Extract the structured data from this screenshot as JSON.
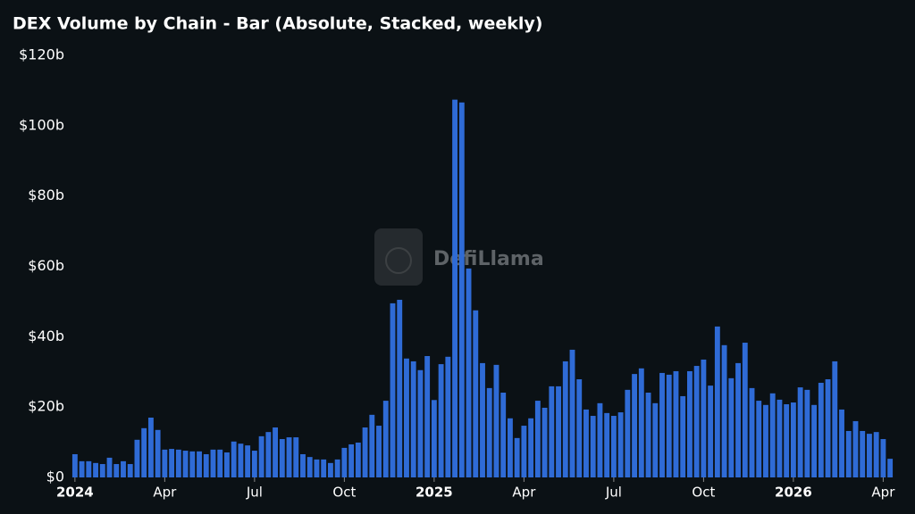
{
  "chart_data": {
    "type": "bar",
    "title": "DEX Volume by Chain - Bar (Absolute, Stacked, weekly)",
    "watermark": "DefiLlama",
    "categories": [
      "2024",
      null,
      null,
      null,
      null,
      null,
      null,
      null,
      null,
      null,
      null,
      null,
      null,
      "Apr",
      null,
      null,
      null,
      null,
      null,
      null,
      null,
      null,
      null,
      null,
      null,
      null,
      "Jul",
      null,
      null,
      null,
      null,
      null,
      null,
      null,
      null,
      null,
      null,
      null,
      null,
      "Oct",
      null,
      null,
      null,
      null,
      null,
      null,
      null,
      null,
      null,
      null,
      null,
      null,
      "2025",
      null,
      null,
      null,
      null,
      null,
      null,
      null,
      null,
      null,
      null,
      null,
      null,
      "Apr",
      null,
      null,
      null,
      null,
      null,
      null,
      null,
      null,
      null,
      null,
      null,
      null,
      "Jul",
      null,
      null,
      null,
      null,
      null,
      null,
      null,
      null,
      null,
      null,
      null,
      null,
      "Oct",
      null,
      null,
      null,
      null,
      null,
      null,
      null,
      null,
      null,
      null,
      null,
      null,
      "2026",
      null,
      null,
      null,
      null,
      null,
      null,
      null,
      null,
      null,
      null,
      null,
      null,
      "Apr",
      null
    ],
    "values": [
      6.6,
      4.6,
      4.6,
      4.1,
      3.8,
      5.6,
      3.8,
      4.6,
      3.8,
      10.7,
      14,
      17,
      13.5,
      7.9,
      8.1,
      7.9,
      7.6,
      7.4,
      7.4,
      6.6,
      7.9,
      7.9,
      7.1,
      10.2,
      9.6,
      9.1,
      7.6,
      11.7,
      12.9,
      14.2,
      10.9,
      11.4,
      11.4,
      6.6,
      5.8,
      5.1,
      5.1,
      4.1,
      5.1,
      8.4,
      9.4,
      9.9,
      14.2,
      17.8,
      14.7,
      21.8,
      49.5,
      50.5,
      33.8,
      33,
      30.5,
      34.5,
      22,
      32.2,
      34.3,
      107.4,
      106.6,
      59.4,
      47.5,
      32.5,
      25.4,
      32,
      24.1,
      16.8,
      11.2,
      14.7,
      16.8,
      21.8,
      19.8,
      25.9,
      25.9,
      33,
      36.3,
      27.9,
      19.3,
      17.5,
      21.1,
      18.3,
      17.5,
      18.5,
      24.9,
      29.4,
      31,
      24.1,
      21.1,
      29.7,
      29.2,
      30.2,
      23.1,
      30.2,
      31.7,
      33.5,
      26.1,
      42.9,
      37.6,
      28.2,
      32.5,
      38.3,
      25.4,
      21.8,
      20.6,
      23.9,
      22.1,
      20.8,
      21.3,
      25.6,
      24.9,
      20.6,
      26.9,
      27.9,
      33,
      19.3,
      13.2,
      16,
      13.2,
      12.4,
      12.9,
      10.9,
      5.3
    ],
    "color": "#2f6bd6",
    "ylim": [
      0,
      120
    ],
    "yticks": [
      {
        "value": 0,
        "label": "$0"
      },
      {
        "value": 20,
        "label": "$20b"
      },
      {
        "value": 40,
        "label": "$40b"
      },
      {
        "value": 60,
        "label": "$60b"
      },
      {
        "value": 80,
        "label": "$80b"
      },
      {
        "value": 100,
        "label": "$100b"
      },
      {
        "value": 120,
        "label": "$120b"
      }
    ],
    "grid": false
  }
}
